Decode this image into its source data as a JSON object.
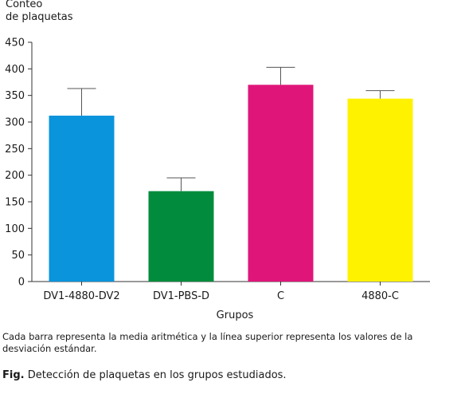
{
  "chart_data": {
    "type": "bar",
    "ylabel": "Conteo\nde plaquetas",
    "xlabel": "Grupos",
    "categories": [
      "DV1-4880-DV2",
      "DV1-PBS-D",
      "C",
      "4880-C"
    ],
    "values": [
      312,
      170,
      370,
      344
    ],
    "error_upper": [
      363,
      195,
      403,
      359
    ],
    "colors": [
      "#0a94dc",
      "#008c3c",
      "#e0157a",
      "#fff200"
    ],
    "ylim": [
      0,
      450
    ],
    "yticks": [
      0,
      50,
      100,
      150,
      200,
      250,
      300,
      350,
      400,
      450
    ],
    "grid": false,
    "legend": "none"
  },
  "note": "Cada barra representa la media aritmética y la línea superior representa los valores de la desviación estándar.",
  "caption": {
    "label": "Fig.",
    "text": " Detección de plaquetas en los grupos estudiados."
  }
}
